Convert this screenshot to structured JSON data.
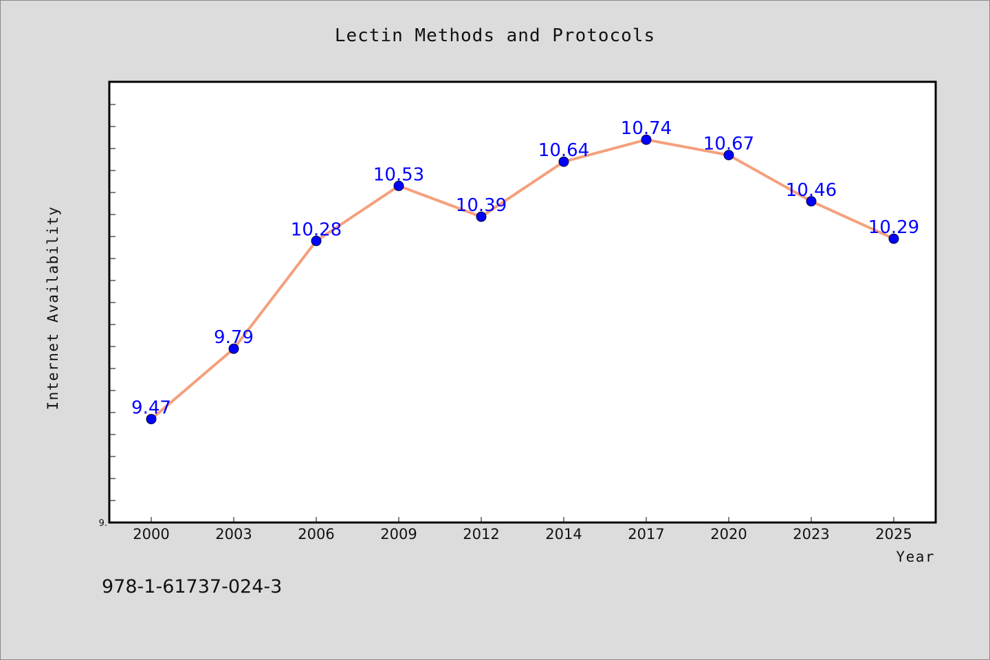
{
  "chart_data": {
    "type": "line",
    "title": "Lectin Methods and Protocols",
    "xlabel": "Year",
    "ylabel": "Internet Availability",
    "categories": [
      "2000",
      "2003",
      "2006",
      "2009",
      "2012",
      "2014",
      "2017",
      "2020",
      "2023",
      "2025"
    ],
    "series": [
      {
        "values": [
          9.47,
          9.79,
          10.28,
          10.53,
          10.39,
          10.64,
          10.74,
          10.67,
          10.46,
          10.29
        ],
        "line_color": "#f4a07c",
        "marker_color": "#0000ff"
      }
    ],
    "data_labels": [
      "9.47",
      "9.79",
      "10.28",
      "10.53",
      "10.39",
      "10.64",
      "10.74",
      "10.67",
      "10.46",
      "10.29"
    ],
    "y_tick_labels": [
      "9."
    ],
    "ylim": [
      9.0,
      11.0
    ],
    "grid": false,
    "legend": "none"
  },
  "footer": {
    "isbn": "978-1-61737-024-3"
  },
  "colors": {
    "background": "#dcdcdc",
    "plot_background": "#ffffff",
    "label_color": "#0000ff"
  }
}
